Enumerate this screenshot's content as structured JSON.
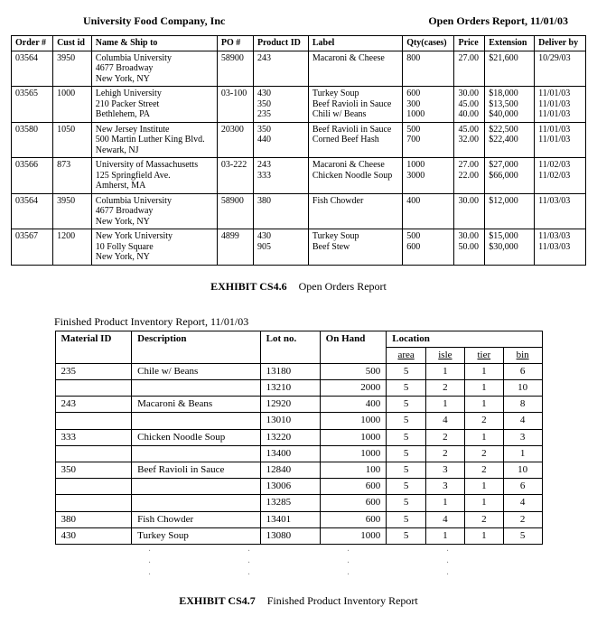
{
  "header": {
    "company": "University Food Company, Inc",
    "report": "Open Orders Report, 11/01/03"
  },
  "orders": {
    "columns": [
      "Order #",
      "Cust id",
      "Name & Ship to",
      "PO #",
      "Product ID",
      "Label",
      "Qty(cases)",
      "Price",
      "Extension",
      "Deliver by"
    ],
    "rows": [
      {
        "order": "03564",
        "cust": "3950",
        "ship": "Columbia University\n4677 Broadway\nNew York, NY",
        "po": "58900",
        "pid": "243",
        "label": "Macaroni & Cheese",
        "qty": "800",
        "price": "27.00",
        "ext": "$21,600",
        "del": "10/29/03"
      },
      {
        "order": "03565",
        "cust": "1000",
        "ship": "Lehigh University\n210 Packer Street\nBethlehem, PA",
        "po": "03-100",
        "pid": "430\n350\n235",
        "label": "Turkey Soup\nBeef Ravioli in Sauce\nChili w/ Beans",
        "qty": "600\n300\n1000",
        "price": "30.00\n45.00\n40.00",
        "ext": "$18,000\n$13,500\n$40,000",
        "del": "11/01/03\n11/01/03\n11/01/03"
      },
      {
        "order": "03580",
        "cust": "1050",
        "ship": "New Jersey Institute\n500 Martin Luther King Blvd.\nNewark, NJ",
        "po": "20300",
        "pid": "350\n440",
        "label": "Beef Ravioli in Sauce\nCorned Beef Hash",
        "qty": "500\n700",
        "price": "45.00\n32.00",
        "ext": "$22,500\n$22,400",
        "del": "11/01/03\n11/01/03"
      },
      {
        "order": "03566",
        "cust": "873",
        "ship": "University of Massachusetts\n125 Springfield Ave.\nAmherst, MA",
        "po": "03-222",
        "pid": "243\n333",
        "label": "Macaroni & Cheese\nChicken Noodle Soup",
        "qty": "1000\n3000",
        "price": "27.00\n22.00",
        "ext": "$27,000\n$66,000",
        "del": "11/02/03\n11/02/03"
      },
      {
        "order": "03564",
        "cust": "3950",
        "ship": "Columbia University\n4677 Broadway\nNew York, NY",
        "po": "58900",
        "pid": "380",
        "label": "Fish Chowder",
        "qty": "400",
        "price": "30.00",
        "ext": "$12,000",
        "del": "11/03/03"
      },
      {
        "order": "03567",
        "cust": "1200",
        "ship": "New York University\n10 Folly Square\nNew York, NY",
        "po": "4899",
        "pid": "430\n905",
        "label": "Turkey Soup\nBeef Stew",
        "qty": "500\n600",
        "price": "30.00\n50.00",
        "ext": "$15,000\n$30,000",
        "del": "11/03/03\n11/03/03"
      }
    ]
  },
  "exhibit1": {
    "code": "EXHIBIT CS4.6",
    "title": "Open Orders Report"
  },
  "inventory": {
    "title": "Finished Product Inventory Report, 11/01/03",
    "columns": {
      "mid": "Material ID",
      "desc": "Description",
      "lot": "Lot no.",
      "onhand": "On Hand",
      "loc": "Location",
      "area": "area",
      "isle": "isle",
      "tier": "tier",
      "bin": "bin"
    },
    "rows": [
      {
        "mid": "235",
        "desc": "Chile w/ Beans",
        "lot": "13180",
        "onhand": "500",
        "area": "5",
        "isle": "1",
        "tier": "1",
        "bin": "6"
      },
      {
        "mid": "",
        "desc": "",
        "lot": "13210",
        "onhand": "2000",
        "area": "5",
        "isle": "2",
        "tier": "1",
        "bin": "10"
      },
      {
        "mid": "243",
        "desc": "Macaroni & Beans",
        "lot": "12920",
        "onhand": "400",
        "area": "5",
        "isle": "1",
        "tier": "1",
        "bin": "8"
      },
      {
        "mid": "",
        "desc": "",
        "lot": "13010",
        "onhand": "1000",
        "area": "5",
        "isle": "4",
        "tier": "2",
        "bin": "4"
      },
      {
        "mid": "333",
        "desc": "Chicken Noodle Soup",
        "lot": "13220",
        "onhand": "1000",
        "area": "5",
        "isle": "2",
        "tier": "1",
        "bin": "3"
      },
      {
        "mid": "",
        "desc": "",
        "lot": "13400",
        "onhand": "1000",
        "area": "5",
        "isle": "2",
        "tier": "2",
        "bin": "1"
      },
      {
        "mid": "350",
        "desc": "Beef Ravioli in Sauce",
        "lot": "12840",
        "onhand": "100",
        "area": "5",
        "isle": "3",
        "tier": "2",
        "bin": "10"
      },
      {
        "mid": "",
        "desc": "",
        "lot": "13006",
        "onhand": "600",
        "area": "5",
        "isle": "3",
        "tier": "1",
        "bin": "6"
      },
      {
        "mid": "",
        "desc": "",
        "lot": "13285",
        "onhand": "600",
        "area": "5",
        "isle": "1",
        "tier": "1",
        "bin": "4"
      },
      {
        "mid": "380",
        "desc": "Fish Chowder",
        "lot": "13401",
        "onhand": "600",
        "area": "5",
        "isle": "4",
        "tier": "2",
        "bin": "2"
      },
      {
        "mid": "430",
        "desc": "Turkey Soup",
        "lot": "13080",
        "onhand": "1000",
        "area": "5",
        "isle": "1",
        "tier": "1",
        "bin": "5"
      }
    ]
  },
  "exhibit2": {
    "code": "EXHIBIT CS4.7",
    "title": "Finished Product Inventory Report"
  }
}
